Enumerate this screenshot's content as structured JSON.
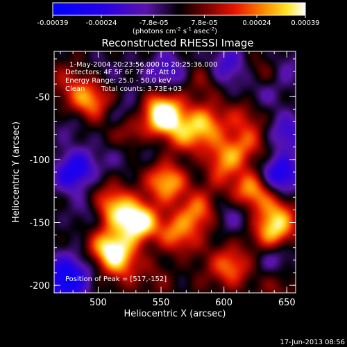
{
  "chart_data": {
    "type": "heatmap",
    "title": "Reconstructed RHESSI Image",
    "xlabel": "Heliocentric X (arcsec)",
    "ylabel": "Heliocentric Y (arcsec)",
    "xlim": [
      465,
      657
    ],
    "ylim": [
      -206,
      -14
    ],
    "xticks": [
      500,
      550,
      600,
      650
    ],
    "yticks": [
      -50,
      -100,
      -150,
      -200
    ],
    "colorbar": {
      "min": -0.00039,
      "max": 0.00039,
      "ticks": [
        "-0.00039",
        "-0.00024",
        "-7.8e-05",
        "7.8e-05",
        "0.00024",
        "0.00039"
      ],
      "tick_values": [
        -0.00039,
        -0.00024,
        -7.8e-05,
        7.8e-05,
        0.00024,
        0.00039
      ],
      "unit_parts": [
        "(photons cm",
        "-2",
        " s",
        "-1",
        " asec",
        "-2",
        ")"
      ]
    },
    "annotations": [
      "1-May-2004 20:23:56.000 to 20:25:36.000",
      "Detectors: 4F 5F 6F 7F 8F, Att 0",
      "Energy Range: 25.0 - 50.0 keV",
      "Clean",
      "Total counts: 3.73E+03"
    ],
    "peak_label": "Position of Peak = [517,-152]",
    "peak": [
      517,
      -152
    ],
    "sources": [
      {
        "x": 532,
        "y": -150,
        "v": 0.00039
      },
      {
        "x": 512,
        "y": -138,
        "v": 0.00031
      },
      {
        "x": 550,
        "y": -65,
        "v": 0.00034
      },
      {
        "x": 525,
        "y": -75,
        "v": 0.00028
      },
      {
        "x": 555,
        "y": -118,
        "v": 0.00032
      },
      {
        "x": 585,
        "y": -72,
        "v": 0.00026
      },
      {
        "x": 622,
        "y": -125,
        "v": 0.0003
      },
      {
        "x": 605,
        "y": -185,
        "v": 0.00024
      },
      {
        "x": 560,
        "y": -158,
        "v": 0.00027
      },
      {
        "x": 580,
        "y": -140,
        "v": 0.00022
      },
      {
        "x": 495,
        "y": -55,
        "v": 0.00022
      },
      {
        "x": 600,
        "y": -100,
        "v": 0.0002
      },
      {
        "x": 548,
        "y": -190,
        "v": 0.00022
      },
      {
        "x": 505,
        "y": -170,
        "v": 0.00018
      },
      {
        "x": 635,
        "y": -30,
        "v": 0.00016
      },
      {
        "x": 642,
        "y": -155,
        "v": 0.00018
      },
      {
        "x": 480,
        "y": -112,
        "v": -0.00026
      },
      {
        "x": 630,
        "y": -50,
        "v": -0.00022
      },
      {
        "x": 650,
        "y": -80,
        "v": -0.00022
      },
      {
        "x": 645,
        "y": -112,
        "v": -0.0003
      },
      {
        "x": 475,
        "y": -195,
        "v": -0.00026
      },
      {
        "x": 555,
        "y": -30,
        "v": -0.00018
      },
      {
        "x": 600,
        "y": -25,
        "v": -0.00015
      },
      {
        "x": 520,
        "y": -100,
        "v": -0.00012
      },
      {
        "x": 640,
        "y": -175,
        "v": -0.00018
      }
    ],
    "grid": false
  },
  "footer": {
    "timestamp": "17-Jun-2013 08:56"
  }
}
